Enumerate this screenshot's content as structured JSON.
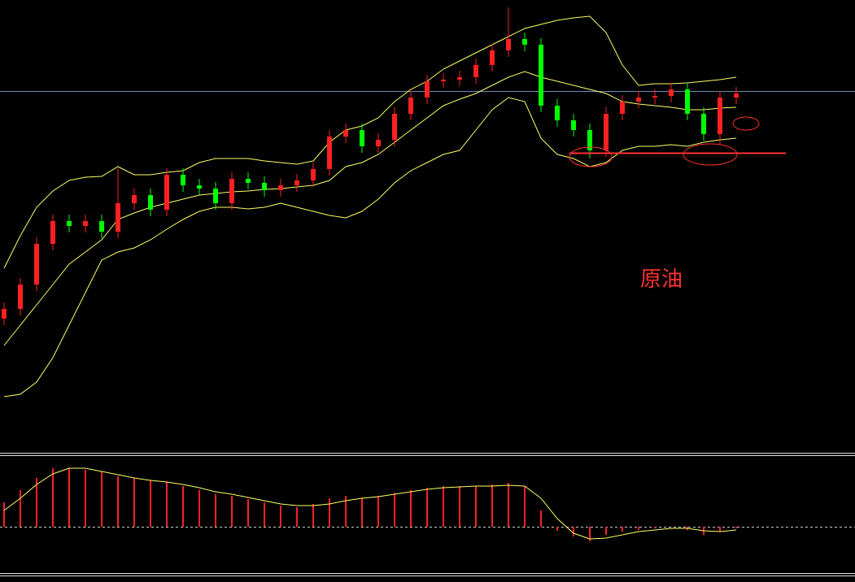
{
  "chart_data": [
    {
      "type": "candlestick",
      "annotation": "原油",
      "annotation_color": "#ff3030",
      "up_color": "#ff2020",
      "down_color": "#00ff00",
      "band_color": "#ffff66",
      "ylim": [
        0,
        557
      ],
      "open": [
        165,
        177,
        207,
        257,
        285,
        279,
        285,
        272,
        307,
        317,
        299,
        342,
        329,
        325,
        307,
        337,
        332,
        323,
        329,
        335,
        349,
        389,
        397,
        377,
        385,
        417,
        437,
        457,
        459,
        462,
        477,
        495,
        509,
        502,
        427,
        409,
        397,
        372,
        417,
        432,
        437,
        439,
        447,
        417,
        392,
        437
      ],
      "high": [
        185,
        215,
        265,
        293,
        293,
        293,
        293,
        350,
        325,
        325,
        350,
        350,
        337,
        333,
        345,
        345,
        340,
        337,
        343,
        357,
        397,
        405,
        405,
        393,
        425,
        445,
        465,
        467,
        470,
        485,
        503,
        548,
        517,
        510,
        435,
        417,
        405,
        425,
        440,
        445,
        447,
        455,
        455,
        425,
        445,
        450
      ],
      "low": [
        157,
        169,
        199,
        249,
        271,
        271,
        264,
        264,
        299,
        291,
        291,
        321,
        317,
        299,
        299,
        324,
        315,
        315,
        321,
        327,
        341,
        381,
        369,
        369,
        377,
        409,
        429,
        449,
        451,
        454,
        469,
        487,
        494,
        419,
        401,
        389,
        362,
        364,
        409,
        424,
        429,
        431,
        409,
        384,
        380,
        429
      ],
      "close": [
        177,
        207,
        257,
        285,
        279,
        285,
        272,
        307,
        317,
        299,
        342,
        329,
        325,
        307,
        337,
        332,
        323,
        329,
        335,
        349,
        389,
        397,
        377,
        385,
        417,
        437,
        457,
        459,
        462,
        477,
        495,
        509,
        502,
        427,
        409,
        397,
        372,
        417,
        432,
        437,
        439,
        447,
        417,
        392,
        437,
        442
      ],
      "bands": {
        "upper": [
          227,
          267,
          302,
          322,
          335,
          339,
          340,
          352,
          342,
          342,
          345,
          347,
          357,
          362,
          362,
          362,
          359,
          357,
          355,
          359,
          382,
          397,
          402,
          412,
          432,
          447,
          457,
          472,
          482,
          492,
          502,
          512,
          522,
          527,
          532,
          535,
          537,
          517,
          477,
          452,
          454,
          454,
          455,
          457,
          459,
          462
        ],
        "middle": [
          132,
          157,
          182,
          207,
          232,
          247,
          262,
          287,
          295,
          302,
          307,
          312,
          317,
          319,
          321,
          322,
          324,
          325,
          327,
          329,
          335,
          352,
          357,
          367,
          382,
          397,
          412,
          427,
          435,
          442,
          452,
          462,
          469,
          462,
          457,
          452,
          447,
          442,
          432,
          429,
          427,
          425,
          422,
          422,
          424,
          425
        ],
        "lower": [
          69,
          72,
          87,
          117,
          157,
          197,
          237,
          247,
          252,
          262,
          275,
          287,
          297,
          302,
          302,
          300,
          302,
          307,
          302,
          297,
          292,
          289,
          297,
          312,
          332,
          347,
          357,
          367,
          372,
          397,
          422,
          437,
          432,
          387,
          367,
          362,
          352,
          357,
          372,
          377,
          377,
          379,
          377,
          382,
          385,
          387
        ]
      }
    },
    {
      "type": "macd",
      "hist_color": "#ff2020",
      "line_color": "#ffff66",
      "ylim": [
        -57,
        86
      ],
      "histogram": [
        30,
        45,
        60,
        72,
        72,
        70,
        68,
        62,
        60,
        58,
        55,
        50,
        45,
        40,
        38,
        34,
        30,
        26,
        24,
        28,
        35,
        38,
        36,
        38,
        42,
        45,
        48,
        50,
        50,
        50,
        52,
        54,
        50,
        20,
        -5,
        -12,
        -18,
        -10,
        -6,
        -4,
        -2,
        0,
        -4,
        -10,
        -6,
        -2
      ],
      "signal": [
        20,
        35,
        52,
        65,
        72,
        72,
        68,
        64,
        60,
        57,
        55,
        52,
        48,
        43,
        40,
        36,
        32,
        28,
        26,
        26,
        28,
        32,
        35,
        37,
        40,
        43,
        46,
        48,
        49,
        50,
        50,
        51,
        50,
        35,
        10,
        -8,
        -15,
        -14,
        -10,
        -6,
        -4,
        -2,
        -2,
        -5,
        -6,
        -4
      ]
    }
  ]
}
